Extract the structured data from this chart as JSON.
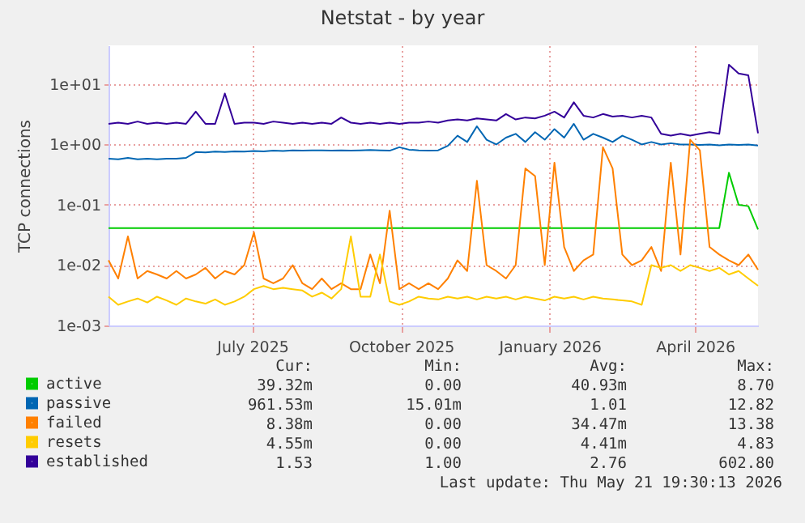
{
  "chart_data": {
    "type": "line",
    "title": "Netstat - by year",
    "ylabel": "TCP connections",
    "log": "y",
    "grid": true,
    "legend": "bottom",
    "line_style": "solid",
    "x": [
      "2025-04-03",
      "2025-04-09",
      "2025-04-15",
      "2025-04-21",
      "2025-04-27",
      "2025-05-03",
      "2025-05-09",
      "2025-05-15",
      "2025-05-21",
      "2025-05-27",
      "2025-06-02",
      "2025-06-08",
      "2025-06-14",
      "2025-06-20",
      "2025-06-26",
      "2025-07-02",
      "2025-07-08",
      "2025-07-14",
      "2025-07-20",
      "2025-07-26",
      "2025-08-01",
      "2025-08-07",
      "2025-08-13",
      "2025-08-19",
      "2025-08-25",
      "2025-08-31",
      "2025-09-06",
      "2025-09-12",
      "2025-09-18",
      "2025-09-24",
      "2025-09-30",
      "2025-10-06",
      "2025-10-12",
      "2025-10-18",
      "2025-10-24",
      "2025-10-30",
      "2025-11-05",
      "2025-11-11",
      "2025-11-17",
      "2025-11-23",
      "2025-11-29",
      "2025-12-05",
      "2025-12-11",
      "2025-12-17",
      "2025-12-23",
      "2025-12-29",
      "2026-01-04",
      "2026-01-10",
      "2026-01-16",
      "2026-01-22",
      "2026-01-28",
      "2026-02-03",
      "2026-02-09",
      "2026-02-15",
      "2026-02-21",
      "2026-02-27",
      "2026-03-05",
      "2026-03-11",
      "2026-03-17",
      "2026-03-23",
      "2026-03-29",
      "2026-04-04",
      "2026-04-10",
      "2026-04-16",
      "2026-04-22",
      "2026-04-28",
      "2026-05-04",
      "2026-05-10"
    ],
    "xlim": [
      "2025-04-03",
      "2026-05-10"
    ],
    "xticks": [
      {
        "value": "2025-07-01",
        "label": "July 2025"
      },
      {
        "value": "2025-10-01",
        "label": "October 2025"
      },
      {
        "value": "2026-01-01",
        "label": "January 2026"
      },
      {
        "value": "2026-04-01",
        "label": "April 2026"
      }
    ],
    "ylim": [
      0.001,
      44
    ],
    "yticks": [
      {
        "value": 0.001,
        "label": "1e-03"
      },
      {
        "value": 0.01,
        "label": "1e-02"
      },
      {
        "value": 0.1,
        "label": "1e-01"
      },
      {
        "value": 1,
        "label": "1e+00"
      },
      {
        "value": 10,
        "label": "1e+01"
      }
    ],
    "series": [
      {
        "name": "active",
        "color": "#00cc00",
        "values": [
          0.041,
          0.041,
          0.041,
          0.041,
          0.041,
          0.041,
          0.041,
          0.041,
          0.041,
          0.041,
          0.041,
          0.041,
          0.041,
          0.041,
          0.041,
          0.041,
          0.041,
          0.041,
          0.041,
          0.041,
          0.041,
          0.041,
          0.041,
          0.041,
          0.041,
          0.041,
          0.041,
          0.041,
          0.041,
          0.041,
          0.041,
          0.041,
          0.041,
          0.041,
          0.041,
          0.041,
          0.041,
          0.041,
          0.041,
          0.041,
          0.041,
          0.041,
          0.041,
          0.041,
          0.041,
          0.041,
          0.041,
          0.041,
          0.041,
          0.041,
          0.041,
          0.041,
          0.041,
          0.041,
          0.041,
          0.041,
          0.041,
          0.041,
          0.041,
          0.041,
          0.041,
          0.041,
          0.041,
          0.041,
          0.34,
          0.1,
          0.095,
          0.039
        ]
      },
      {
        "name": "passive",
        "color": "#0066b3",
        "values": [
          0.58,
          0.57,
          0.6,
          0.57,
          0.58,
          0.57,
          0.58,
          0.58,
          0.6,
          0.75,
          0.74,
          0.76,
          0.75,
          0.77,
          0.76,
          0.78,
          0.77,
          0.79,
          0.78,
          0.8,
          0.79,
          0.8,
          0.8,
          0.79,
          0.8,
          0.79,
          0.8,
          0.81,
          0.8,
          0.79,
          0.9,
          0.82,
          0.8,
          0.79,
          0.8,
          0.95,
          1.4,
          1.1,
          2.0,
          1.2,
          1.0,
          1.3,
          1.5,
          1.1,
          1.6,
          1.2,
          1.8,
          1.3,
          2.2,
          1.2,
          1.5,
          1.3,
          1.1,
          1.4,
          1.2,
          1.0,
          1.1,
          1.0,
          1.05,
          1.0,
          1.0,
          0.98,
          1.0,
          0.97,
          1.0,
          0.98,
          1.0,
          0.96
        ]
      },
      {
        "name": "failed",
        "color": "#ff8000",
        "values": [
          0.012,
          0.006,
          0.03,
          0.006,
          0.008,
          0.007,
          0.006,
          0.008,
          0.006,
          0.007,
          0.009,
          0.006,
          0.008,
          0.007,
          0.01,
          0.035,
          0.006,
          0.005,
          0.006,
          0.01,
          0.005,
          0.004,
          0.006,
          0.004,
          0.005,
          0.004,
          0.004,
          0.015,
          0.005,
          0.08,
          0.004,
          0.005,
          0.004,
          0.005,
          0.004,
          0.006,
          0.012,
          0.008,
          0.25,
          0.01,
          0.008,
          0.006,
          0.01,
          0.4,
          0.3,
          0.01,
          0.5,
          0.02,
          0.008,
          0.012,
          0.015,
          0.9,
          0.4,
          0.015,
          0.01,
          0.012,
          0.02,
          0.008,
          0.5,
          0.015,
          1.2,
          0.8,
          0.02,
          0.015,
          0.012,
          0.01,
          0.015,
          0.00838
        ]
      },
      {
        "name": "resets",
        "color": "#ffcc00",
        "values": [
          0.003,
          0.0022,
          0.0025,
          0.0028,
          0.0024,
          0.003,
          0.0026,
          0.0022,
          0.0028,
          0.0025,
          0.0023,
          0.0027,
          0.0022,
          0.0025,
          0.003,
          0.004,
          0.0045,
          0.004,
          0.0042,
          0.004,
          0.0038,
          0.003,
          0.0035,
          0.0028,
          0.004,
          0.03,
          0.003,
          0.003,
          0.015,
          0.0025,
          0.0022,
          0.0025,
          0.003,
          0.0028,
          0.0027,
          0.003,
          0.0028,
          0.003,
          0.0027,
          0.003,
          0.0028,
          0.003,
          0.0027,
          0.003,
          0.0028,
          0.0026,
          0.003,
          0.0028,
          0.003,
          0.0027,
          0.003,
          0.0028,
          0.0027,
          0.0026,
          0.0025,
          0.0022,
          0.01,
          0.009,
          0.01,
          0.008,
          0.01,
          0.009,
          0.008,
          0.009,
          0.007,
          0.008,
          0.006,
          0.00455
        ]
      },
      {
        "name": "established",
        "color": "#330099",
        "values": [
          2.2,
          2.3,
          2.2,
          2.4,
          2.2,
          2.3,
          2.2,
          2.3,
          2.2,
          3.5,
          2.2,
          2.2,
          7,
          2.2,
          2.3,
          2.3,
          2.2,
          2.4,
          2.3,
          2.2,
          2.3,
          2.2,
          2.3,
          2.2,
          2.8,
          2.3,
          2.2,
          2.3,
          2.2,
          2.3,
          2.2,
          2.3,
          2.3,
          2.4,
          2.3,
          2.5,
          2.6,
          2.5,
          2.7,
          2.6,
          2.5,
          3.2,
          2.6,
          2.8,
          2.7,
          3.0,
          3.5,
          2.8,
          5,
          3.0,
          2.8,
          3.2,
          2.9,
          3.0,
          2.8,
          3.0,
          2.8,
          1.5,
          1.4,
          1.5,
          1.4,
          1.5,
          1.6,
          1.5,
          21,
          15,
          14,
          1.53
        ]
      }
    ],
    "annotations": [
      "Cur: Min: Avg: Max:",
      "39.32m 0.00 40.93m 8.70",
      "961.53m 15.01m 1.01 12.82",
      "8.38m 0.00 34.47m 13.38",
      "4.55m 0.00 4.41m 4.83",
      "1.53 1.00 2.76 602.80",
      "Last update: Thu May 21 19:30:13 2026"
    ]
  }
}
